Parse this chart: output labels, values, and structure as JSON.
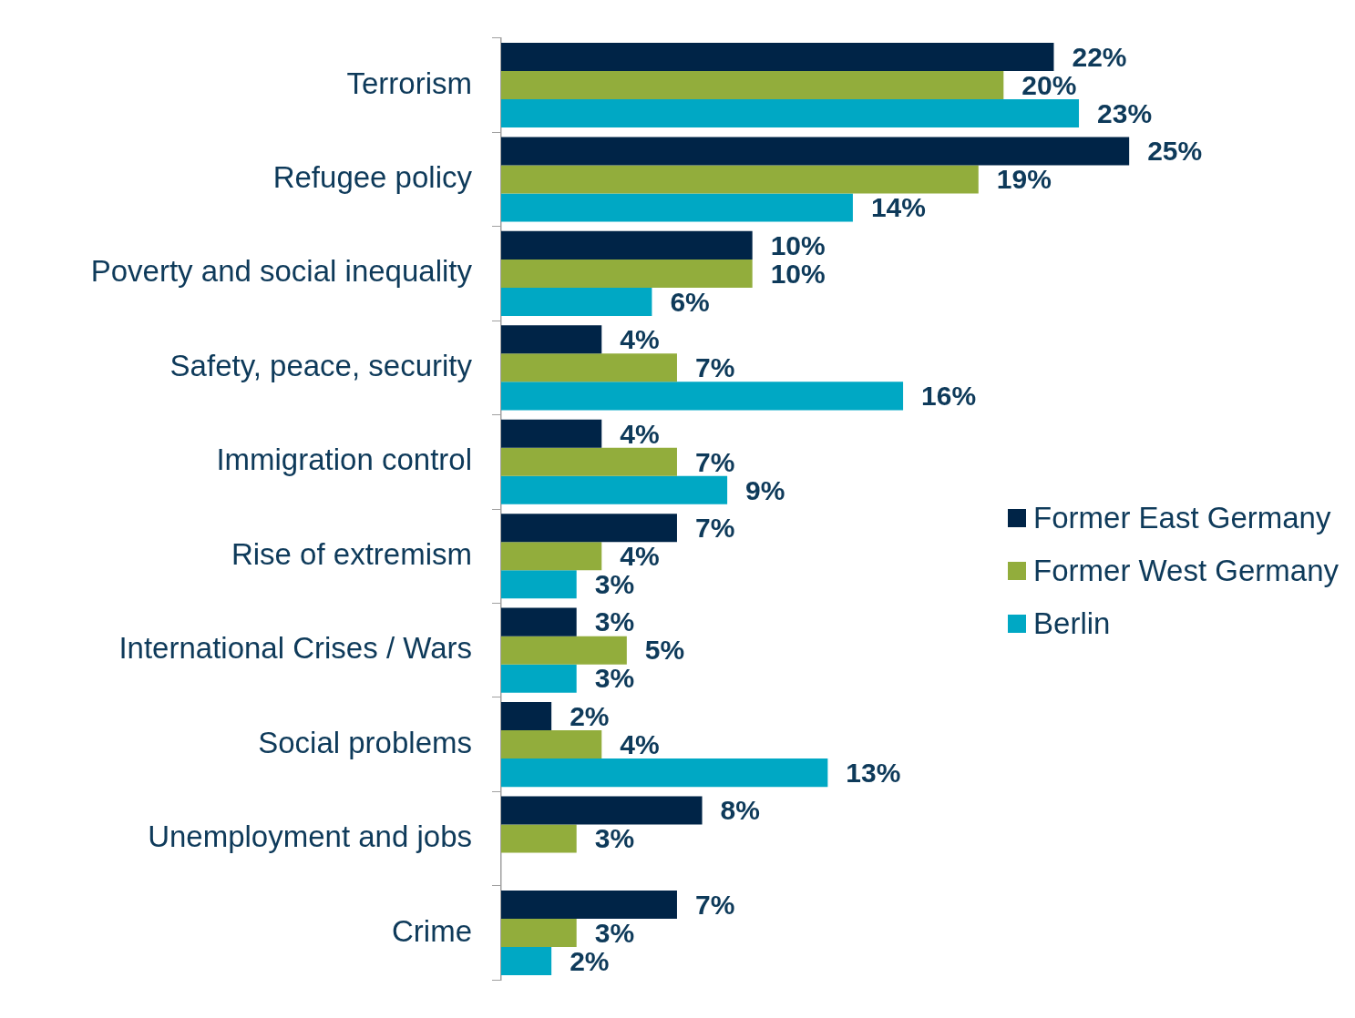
{
  "chart_data": {
    "type": "bar",
    "orientation": "horizontal",
    "legend": "right",
    "categories": [
      "Terrorism",
      "Refugee policy",
      "Poverty and social inequality",
      "Safety, peace, security",
      "Immigration control",
      "Rise of extremism",
      "International Crises / Wars",
      "Social problems",
      "Unemployment and jobs",
      "Crime"
    ],
    "series": [
      {
        "name": "Former East Germany",
        "color": "#002447",
        "values": [
          22,
          25,
          10,
          4,
          4,
          7,
          3,
          2,
          8,
          7
        ],
        "value_labels": [
          "22%",
          "25%",
          "10%",
          "4%",
          "4%",
          "7%",
          "3%",
          "2%",
          "8%",
          "7%"
        ]
      },
      {
        "name": "Former West Germany",
        "color": "#92ad3c",
        "values": [
          20,
          19,
          10,
          7,
          7,
          4,
          5,
          4,
          3,
          3
        ],
        "value_labels": [
          "20%",
          "19%",
          "10%",
          "7%",
          "7%",
          "4%",
          "5%",
          "4%",
          "3%",
          "3%"
        ]
      },
      {
        "name": "Berlin",
        "color": "#00a8c4",
        "values": [
          23,
          14,
          6,
          16,
          9,
          3,
          3,
          13,
          null,
          2
        ],
        "value_labels": [
          "23%",
          "14%",
          "6%",
          "16%",
          "9%",
          "3%",
          "3%",
          "13%",
          null,
          "2%"
        ]
      }
    ]
  }
}
